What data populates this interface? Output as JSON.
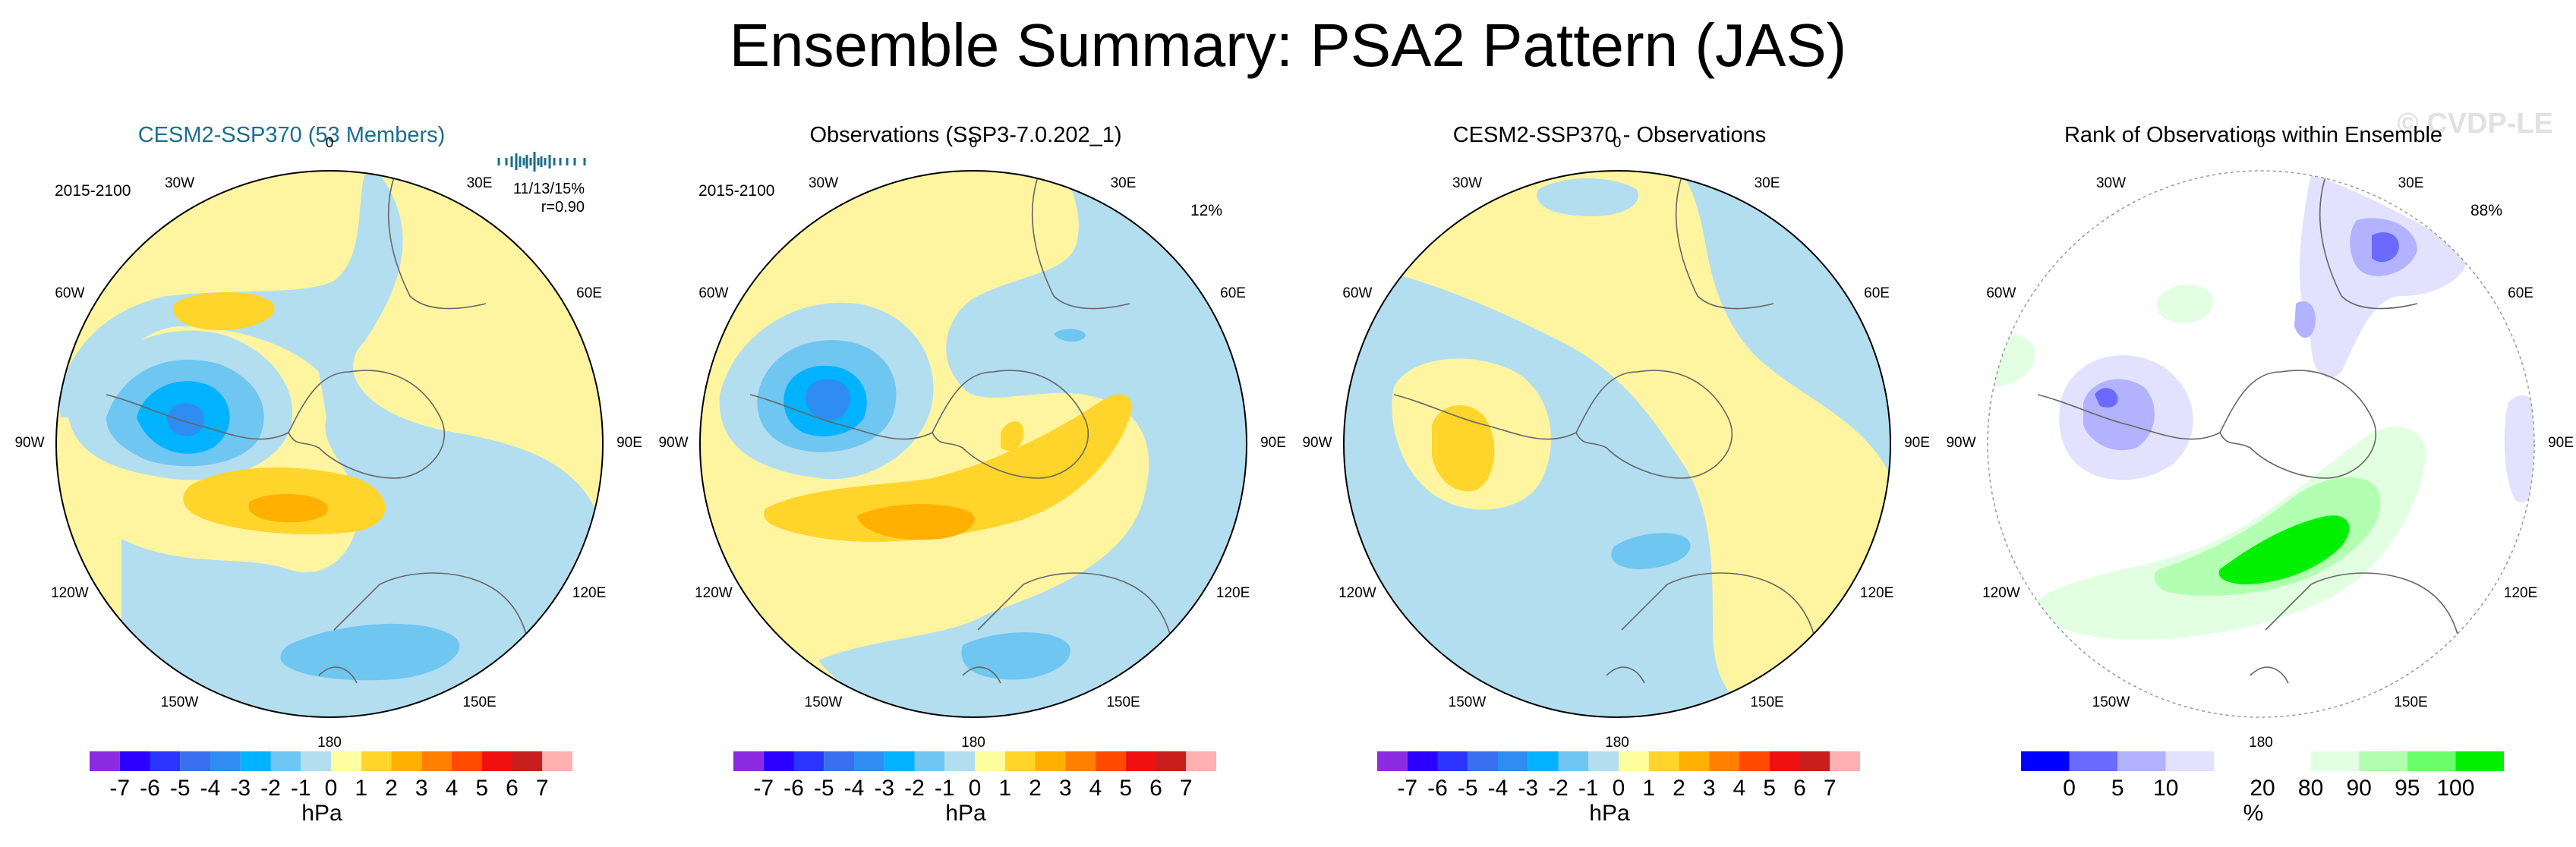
{
  "title": "Ensemble Summary: PSA2 Pattern (JAS)",
  "watermark": "© CVDP-LE",
  "longitude_labels": [
    "0",
    "30E",
    "60E",
    "90E",
    "120E",
    "150E",
    "180",
    "150W",
    "120W",
    "90W",
    "60W",
    "30W"
  ],
  "panels": [
    {
      "title": "CESM2-SSP370 (53 Members)",
      "period": "2015-2100",
      "stats_line1": "11/13/15%",
      "stats_line2": "r=0.90",
      "pct": "",
      "colorbar_kind": "hpa",
      "units": "hPa"
    },
    {
      "title": "Observations (SSP3-7.0.202_1)",
      "period": "2015-2100",
      "stats_line1": "",
      "stats_line2": "",
      "pct": "12%",
      "colorbar_kind": "hpa",
      "units": "hPa"
    },
    {
      "title": "CESM2-SSP370 - Observations",
      "period": "",
      "stats_line1": "",
      "stats_line2": "",
      "pct": "",
      "colorbar_kind": "hpa",
      "units": "hPa"
    },
    {
      "title": "Rank of Observations within Ensemble",
      "period": "",
      "stats_line1": "",
      "stats_line2": "",
      "pct": "88%",
      "colorbar_kind": "rank",
      "units": "%"
    }
  ],
  "colorbar_hpa": {
    "colors": [
      "#8c2be2",
      "#2b00ff",
      "#2b35ff",
      "#3a6ff0",
      "#2f8cf0",
      "#00b2ff",
      "#6fc6f0",
      "#b3def0",
      "#ffffa0",
      "#ffd52b",
      "#ffb000",
      "#ff7f00",
      "#ff4a00",
      "#f01010",
      "#c81e1e",
      "#ffb0b0"
    ],
    "labels": [
      "-7",
      "-6",
      "-5",
      "-4",
      "-3",
      "-2",
      "-1",
      "0",
      "1",
      "2",
      "3",
      "4",
      "5",
      "6",
      "7"
    ]
  },
  "colorbar_rank": {
    "colors": [
      "#0000ff",
      "#6a6aff",
      "#b2b2ff",
      "#e2e2ff",
      "#ffffff",
      "#ffffff",
      "#e2ffe2",
      "#b2ffb2",
      "#6aff6a",
      "#00f000"
    ],
    "labels": [
      "0",
      "5",
      "10",
      "20",
      "80",
      "90",
      "95",
      "100"
    ]
  },
  "colors": {
    "positive_1": "#fff5a0",
    "positive_2": "#ffd52b",
    "positive_3": "#ffb000",
    "negative_1": "#b3def0",
    "negative_2": "#6fc6f0",
    "negative_3": "#00b2ff",
    "negative_4": "#2f8cf0",
    "rank_low_1": "#e2e2ff",
    "rank_low_2": "#b2b2ff",
    "rank_low_3": "#6a6aff",
    "rank_high_1": "#e2ffe2",
    "rank_high_2": "#b2ffb2",
    "rank_high_3": "#00f000"
  }
}
